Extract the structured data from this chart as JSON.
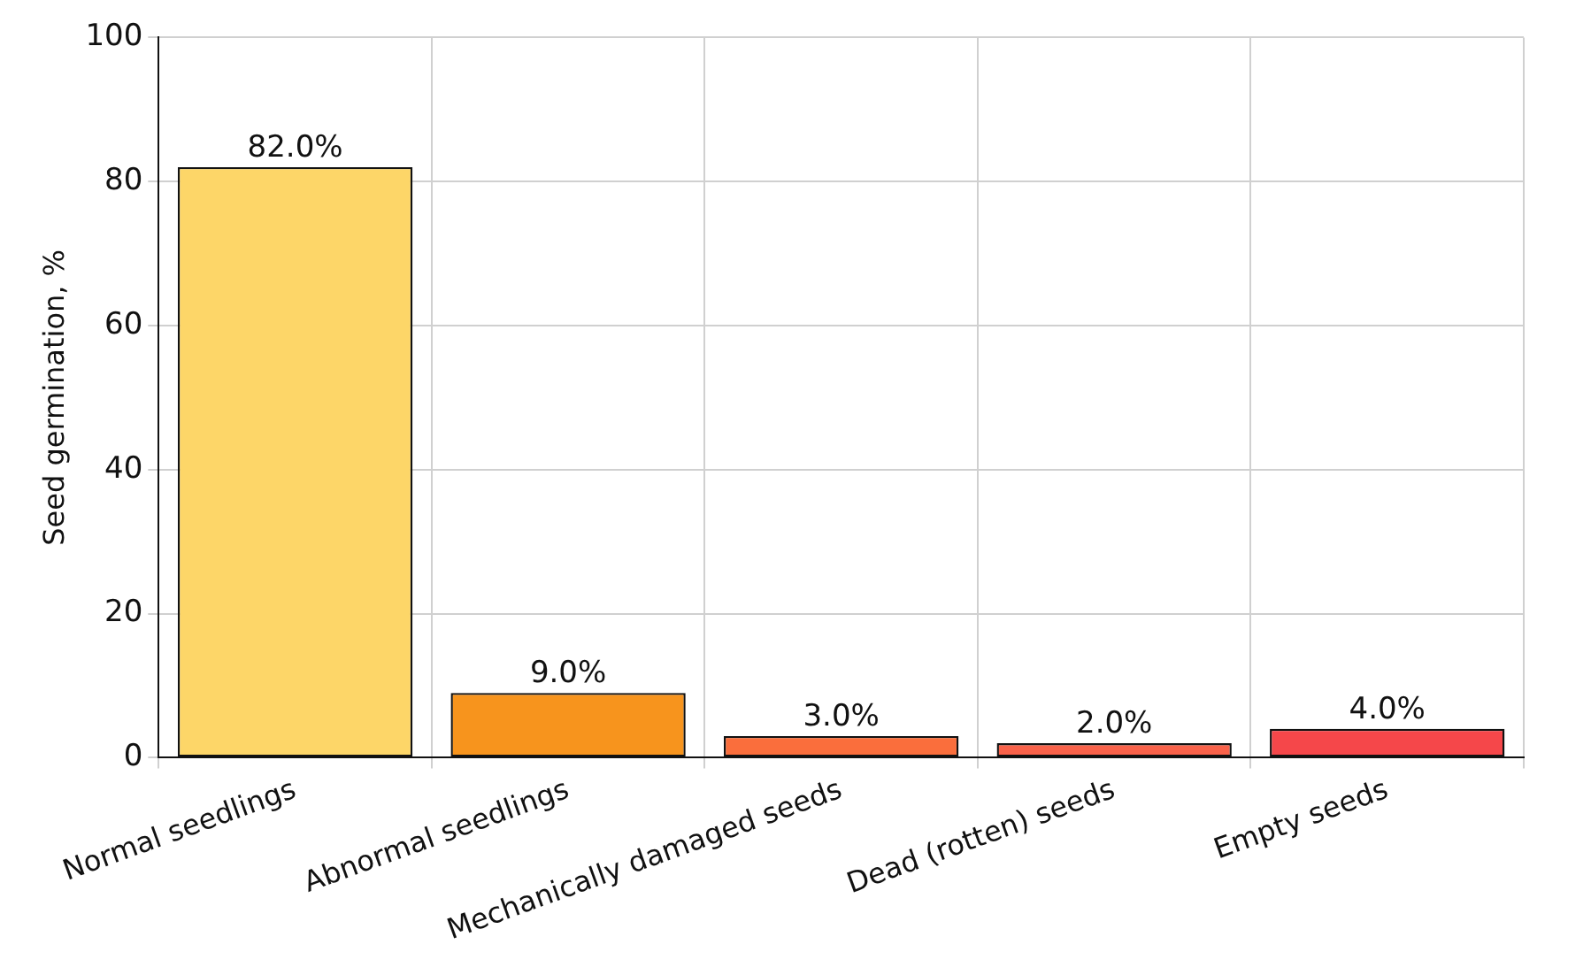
{
  "chart_data": {
    "type": "bar",
    "ylabel": "Seed germination, %",
    "categories": [
      "Normal seedlings",
      "Abnormal seedlings",
      "Mechanically damaged seeds",
      "Dead (rotten) seeds",
      "Empty seeds"
    ],
    "values": [
      82,
      9,
      3,
      2,
      4
    ],
    "value_labels": [
      "82.0%",
      "9.0%",
      "3.0%",
      "2.0%",
      "4.0%"
    ],
    "colors": [
      "#fdd668",
      "#f7941d",
      "#fa6e3c",
      "#f9624a",
      "#f5474a"
    ],
    "ylim": [
      0,
      100
    ],
    "yticks": [
      0,
      20,
      40,
      60,
      80,
      100
    ],
    "grid": true,
    "legend": false
  }
}
